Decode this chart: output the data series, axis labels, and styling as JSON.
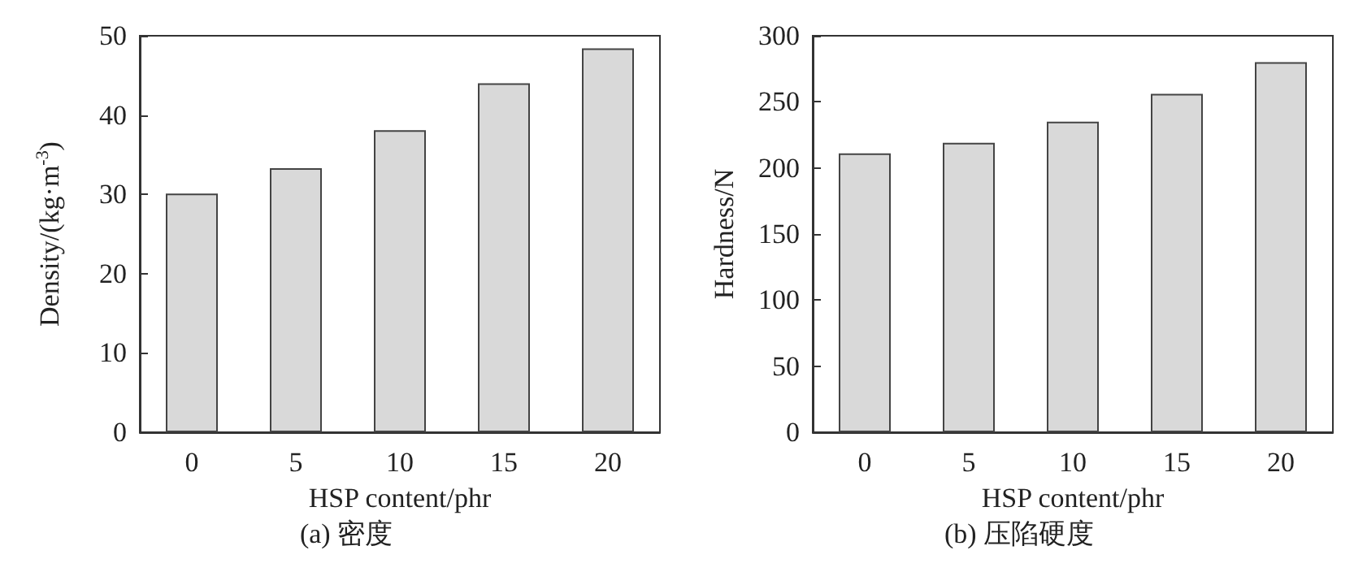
{
  "chart_data": [
    {
      "type": "bar",
      "title": "(a) 密度",
      "xlabel": "HSP content/phr",
      "ylabel": "Density/(kg·m$^{-3}$)",
      "categories": [
        "0",
        "5",
        "10",
        "15",
        "20"
      ],
      "values": [
        30.1,
        33.3,
        38.1,
        44.0,
        48.4
      ],
      "color": "#d9d9d9",
      "ylim": [
        0,
        50
      ],
      "yticks": [
        0,
        10,
        20,
        30,
        40,
        50
      ]
    },
    {
      "type": "bar",
      "title": "(b) 压陷硬度",
      "xlabel": "HSP content/phr",
      "ylabel": "Hardness/N",
      "categories": [
        "0",
        "5",
        "10",
        "15",
        "20"
      ],
      "values": [
        211,
        219,
        235,
        256,
        280
      ],
      "color": "#d9d9d9",
      "ylim": [
        0,
        300
      ],
      "yticks": [
        0,
        50,
        100,
        150,
        200,
        250,
        300
      ]
    }
  ]
}
